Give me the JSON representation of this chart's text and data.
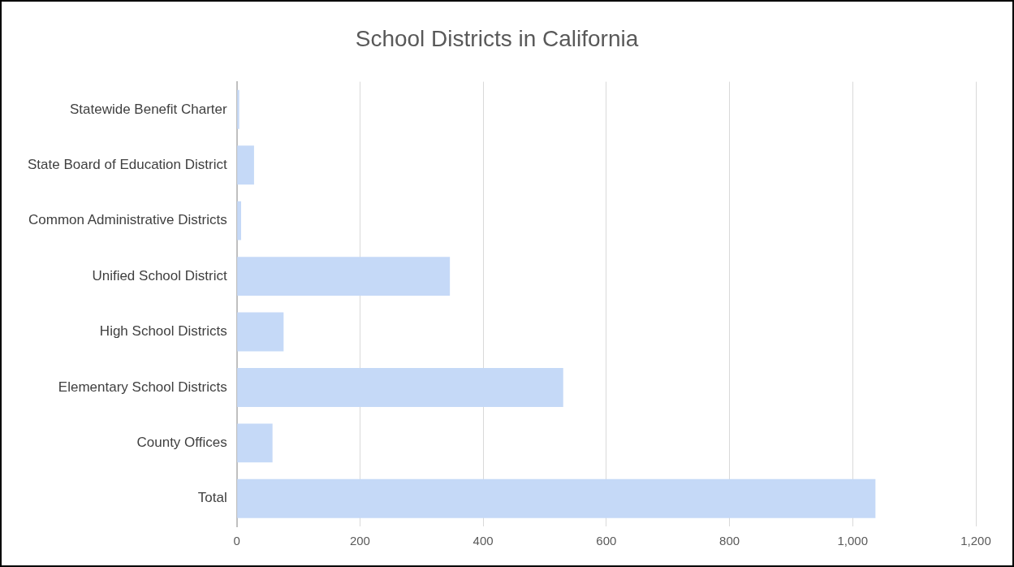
{
  "chart_data": {
    "type": "bar",
    "orientation": "horizontal",
    "title": "School Districts in California",
    "categories": [
      "Statewide Benefit Charter",
      "State Board of Education District",
      "Common Administrative Districts",
      "Unified School District",
      "High School Districts",
      "Elementary School Districts",
      "County Offices",
      "Total"
    ],
    "values": [
      4,
      28,
      7,
      346,
      76,
      530,
      58,
      1037
    ],
    "color": "#c5d9f7",
    "xlim": [
      0,
      1200
    ],
    "xticks": [
      {
        "value": 0,
        "label": "0"
      },
      {
        "value": 200,
        "label": "200"
      },
      {
        "value": 400,
        "label": "400"
      },
      {
        "value": 600,
        "label": "600"
      },
      {
        "value": 800,
        "label": "800"
      },
      {
        "value": 1000,
        "label": "1,000"
      },
      {
        "value": 1200,
        "label": "1,200"
      }
    ],
    "grid": "x",
    "legend": false
  }
}
